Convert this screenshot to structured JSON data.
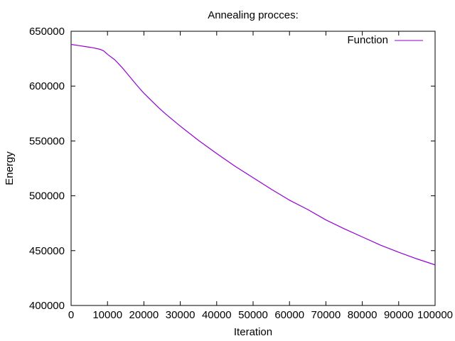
{
  "chart_data": {
    "type": "line",
    "title": "Annealing procces:",
    "xlabel": "Iteration",
    "ylabel": "Energy",
    "xlim": [
      0,
      100000
    ],
    "ylim": [
      400000,
      650000
    ],
    "xticks": [
      0,
      10000,
      20000,
      30000,
      40000,
      50000,
      60000,
      70000,
      80000,
      90000,
      100000
    ],
    "yticks": [
      400000,
      450000,
      500000,
      550000,
      600000,
      650000
    ],
    "grid": false,
    "legend": "top-right",
    "series": [
      {
        "name": "Function",
        "color": "#9400d3",
        "x": [
          0,
          2000,
          4000,
          6000,
          8000,
          9000,
          10000,
          12000,
          14000,
          16000,
          18000,
          20000,
          22000,
          24000,
          26000,
          28000,
          30000,
          35000,
          40000,
          45000,
          50000,
          55000,
          60000,
          65000,
          70000,
          75000,
          80000,
          85000,
          90000,
          95000,
          100000
        ],
        "y": [
          638000,
          637000,
          636000,
          635000,
          633500,
          632000,
          629000,
          624000,
          617000,
          609000,
          601000,
          593500,
          587000,
          580500,
          574500,
          569000,
          563500,
          550500,
          538500,
          527000,
          516500,
          506000,
          496000,
          487500,
          478000,
          470000,
          462500,
          455000,
          448500,
          442500,
          437000
        ]
      }
    ]
  }
}
